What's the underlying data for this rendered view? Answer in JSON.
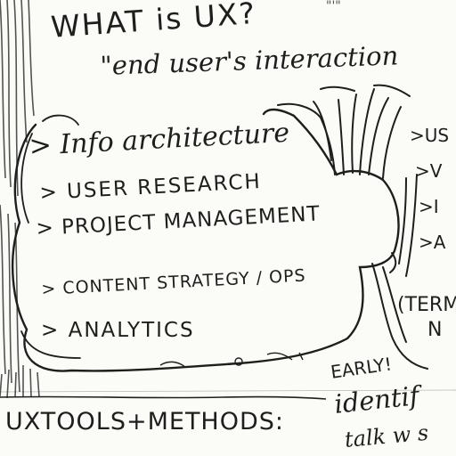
{
  "heading": "WHAT is UX?",
  "heading_fragment": "\"'\"",
  "quote": "\"end user's interaction",
  "cloud_items": [
    "> Info architecture",
    "> USER RESEARCH",
    "> PROJECT MANAGEMENT",
    "> CONTENT STRATEGY / OPS",
    "> ANALYTICS"
  ],
  "right_column": [
    ">US",
    ">V",
    ">I",
    ">A"
  ],
  "right_note": [
    "(TERM",
    "N"
  ],
  "tools_label": "UXTOOLS+METHODS:",
  "early_label": "EARLY!",
  "bottom_right": [
    "identif",
    "talk w s"
  ],
  "ink_color": "#1e1e1e",
  "paper_color": "#fbfbf8"
}
